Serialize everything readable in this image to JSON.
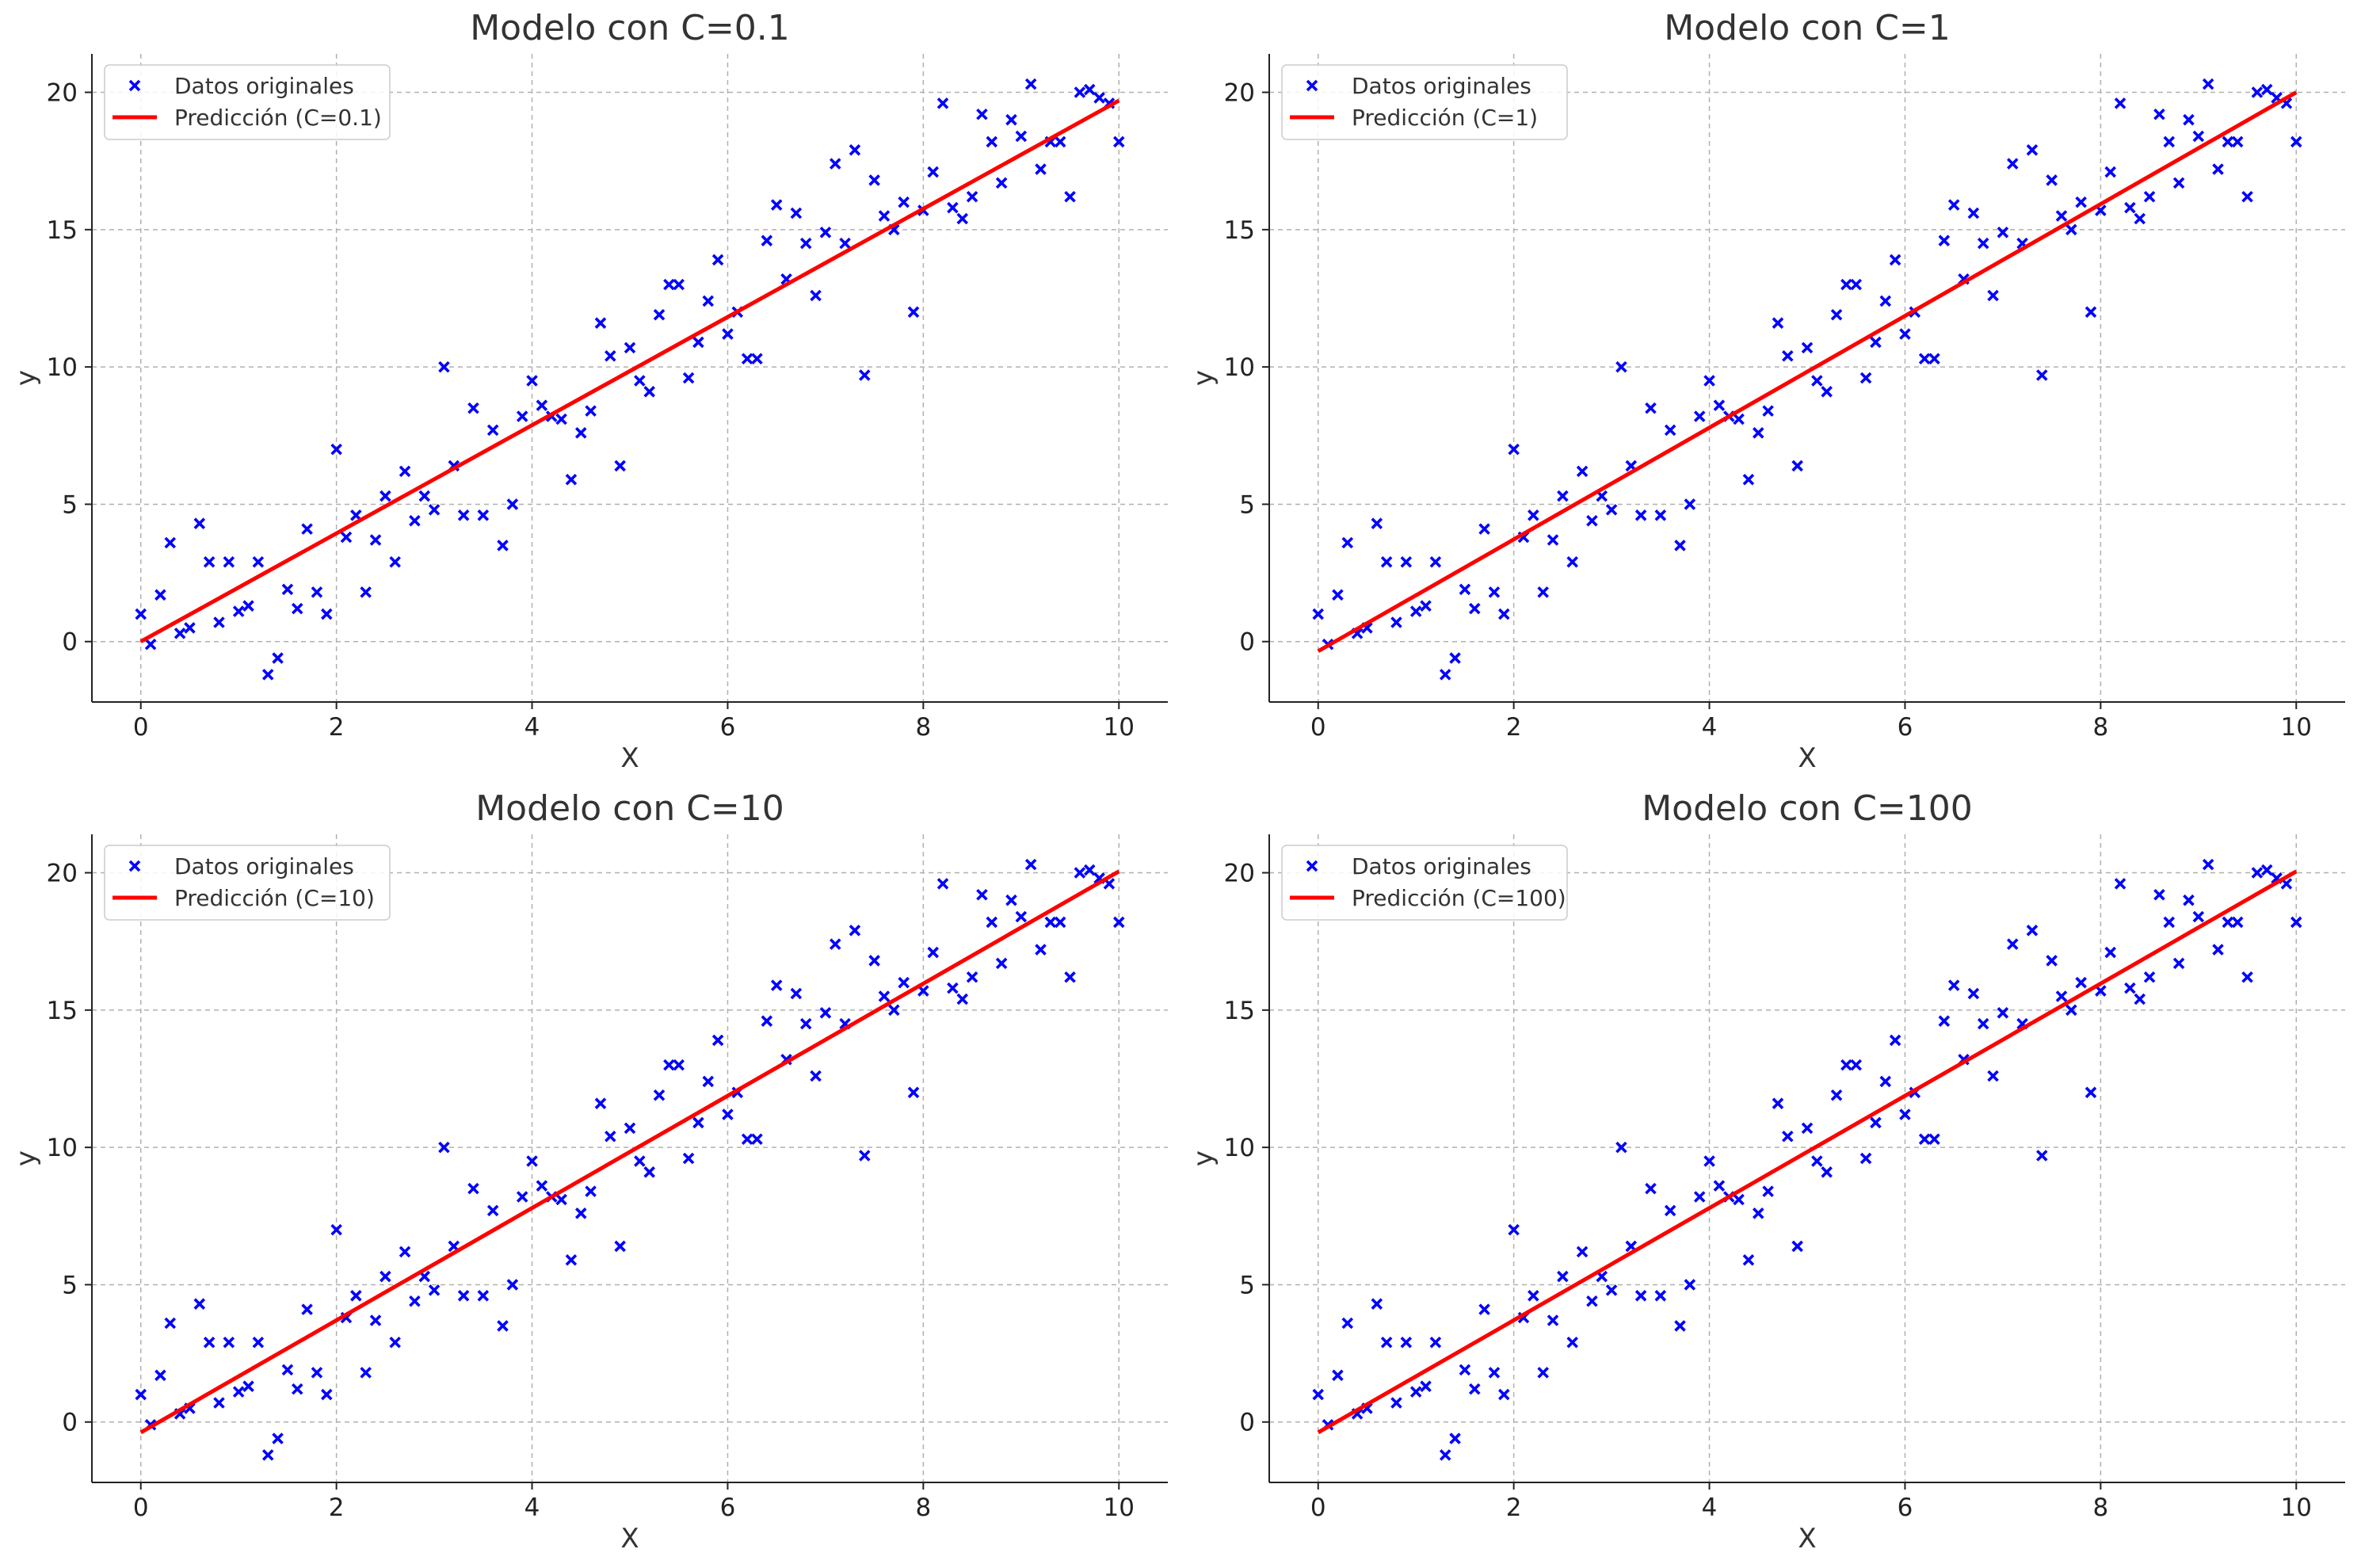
{
  "chart_data": [
    {
      "type": "scatter",
      "title": "Modelo con C=0.1",
      "xlabel": "X",
      "ylabel": "y",
      "xlim": [
        -0.5,
        10.5
      ],
      "ylim": [
        -2.2,
        21.4
      ],
      "xticks": [
        0,
        2,
        4,
        6,
        8,
        10
      ],
      "yticks": [
        0,
        5,
        10,
        15,
        20
      ],
      "grid": true,
      "legend_position": "top-left",
      "series": [
        {
          "name": "Datos originales",
          "kind": "scatter",
          "marker": "x",
          "color": "#0000ff",
          "source": "points"
        },
        {
          "name": "Predicción (C=0.1)",
          "kind": "line",
          "color": "#ff0000",
          "x": [
            0,
            10
          ],
          "y": [
            0.0,
            19.7
          ]
        }
      ]
    },
    {
      "type": "scatter",
      "title": "Modelo con C=1",
      "xlabel": "X",
      "ylabel": "y",
      "xlim": [
        -0.5,
        10.5
      ],
      "ylim": [
        -2.2,
        21.4
      ],
      "xticks": [
        0,
        2,
        4,
        6,
        8,
        10
      ],
      "yticks": [
        0,
        5,
        10,
        15,
        20
      ],
      "grid": true,
      "legend_position": "top-left",
      "series": [
        {
          "name": "Datos originales",
          "kind": "scatter",
          "marker": "x",
          "color": "#0000ff",
          "source": "points"
        },
        {
          "name": "Predicción (C=1)",
          "kind": "line",
          "color": "#ff0000",
          "x": [
            0,
            10
          ],
          "y": [
            -0.35,
            20.0
          ]
        }
      ]
    },
    {
      "type": "scatter",
      "title": "Modelo con C=10",
      "xlabel": "X",
      "ylabel": "y",
      "xlim": [
        -0.5,
        10.5
      ],
      "ylim": [
        -2.2,
        21.4
      ],
      "xticks": [
        0,
        2,
        4,
        6,
        8,
        10
      ],
      "yticks": [
        0,
        5,
        10,
        15,
        20
      ],
      "grid": true,
      "legend_position": "top-left",
      "series": [
        {
          "name": "Datos originales",
          "kind": "scatter",
          "marker": "x",
          "color": "#0000ff",
          "source": "points"
        },
        {
          "name": "Predicción (C=10)",
          "kind": "line",
          "color": "#ff0000",
          "x": [
            0,
            10
          ],
          "y": [
            -0.38,
            20.05
          ]
        }
      ]
    },
    {
      "type": "scatter",
      "title": "Modelo con C=100",
      "xlabel": "X",
      "ylabel": "y",
      "xlim": [
        -0.5,
        10.5
      ],
      "ylim": [
        -2.2,
        21.4
      ],
      "xticks": [
        0,
        2,
        4,
        6,
        8,
        10
      ],
      "yticks": [
        0,
        5,
        10,
        15,
        20
      ],
      "grid": true,
      "legend_position": "top-left",
      "series": [
        {
          "name": "Datos originales",
          "kind": "scatter",
          "marker": "x",
          "color": "#0000ff",
          "source": "points"
        },
        {
          "name": "Predicción (C=100)",
          "kind": "line",
          "color": "#ff0000",
          "x": [
            0,
            10
          ],
          "y": [
            -0.38,
            20.05
          ]
        }
      ]
    }
  ],
  "points": {
    "x": [
      0.0,
      0.1,
      0.2,
      0.3,
      0.4,
      0.5,
      0.6,
      0.7,
      0.8,
      0.9,
      1.0,
      1.1,
      1.2,
      1.3,
      1.4,
      1.5,
      1.6,
      1.7,
      1.8,
      1.9,
      2.0,
      2.1,
      2.2,
      2.3,
      2.4,
      2.5,
      2.6,
      2.7,
      2.8,
      2.9,
      3.0,
      3.1,
      3.2,
      3.3,
      3.4,
      3.5,
      3.6,
      3.7,
      3.8,
      3.9,
      4.0,
      4.1,
      4.2,
      4.3,
      4.4,
      4.5,
      4.6,
      4.7,
      4.8,
      4.9,
      5.0,
      5.1,
      5.2,
      5.3,
      5.4,
      5.5,
      5.6,
      5.7,
      5.8,
      5.9,
      6.0,
      6.1,
      6.2,
      6.3,
      6.4,
      6.5,
      6.6,
      6.7,
      6.8,
      6.9,
      7.0,
      7.1,
      7.2,
      7.3,
      7.4,
      7.5,
      7.6,
      7.7,
      7.8,
      7.9,
      8.0,
      8.1,
      8.2,
      8.3,
      8.4,
      8.5,
      8.6,
      8.7,
      8.8,
      8.9,
      9.0,
      9.1,
      9.2,
      9.3,
      9.4,
      9.5,
      9.6,
      9.7,
      9.8,
      9.9,
      10.0
    ],
    "y": [
      1.0,
      -0.1,
      1.7,
      3.6,
      0.3,
      0.5,
      4.3,
      2.9,
      0.7,
      2.9,
      1.1,
      1.3,
      2.9,
      -1.2,
      -0.6,
      1.9,
      1.2,
      4.1,
      1.8,
      1.0,
      7.0,
      3.8,
      4.6,
      1.8,
      3.7,
      5.3,
      2.9,
      6.2,
      4.4,
      5.3,
      4.8,
      10.0,
      6.4,
      4.6,
      8.5,
      4.6,
      7.7,
      3.5,
      5.0,
      8.2,
      9.5,
      8.6,
      8.2,
      8.1,
      5.9,
      7.6,
      8.4,
      11.6,
      10.4,
      6.4,
      10.7,
      9.5,
      9.1,
      11.9,
      13.0,
      13.0,
      9.6,
      10.9,
      12.4,
      13.9,
      11.2,
      12.0,
      10.3,
      10.3,
      14.6,
      15.9,
      13.2,
      15.6,
      14.5,
      12.6,
      14.9,
      17.4,
      14.5,
      17.9,
      9.7,
      16.8,
      15.5,
      15.0,
      16.0,
      12.0,
      15.7,
      17.1,
      19.6,
      15.8,
      15.4,
      16.2,
      19.2,
      18.2,
      16.7,
      19.0,
      18.4,
      20.3,
      17.2,
      18.2,
      18.2,
      16.2,
      20.0,
      20.1,
      19.8,
      19.6,
      18.2
    ]
  },
  "legend": {
    "scatter_label": "Datos originales"
  }
}
